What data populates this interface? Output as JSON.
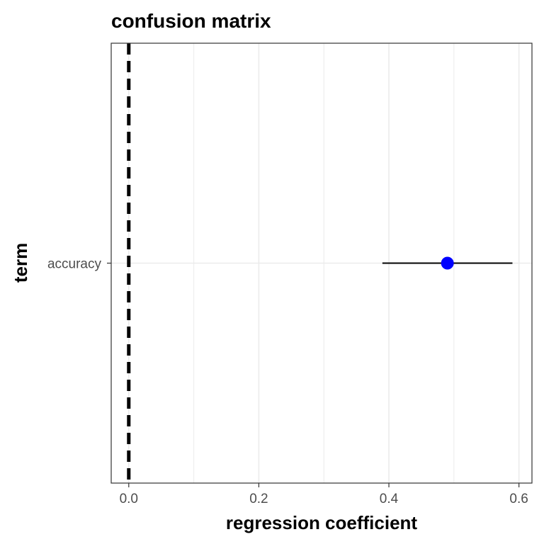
{
  "chart_data": {
    "type": "scatter",
    "title": "confusion matrix",
    "xlabel": "regression coefficient",
    "ylabel": "term",
    "categories": [
      "accuracy"
    ],
    "points": [
      {
        "term": "accuracy",
        "estimate": 0.49,
        "conf_low": 0.39,
        "conf_high": 0.59
      }
    ],
    "xlim": [
      -0.027,
      0.62
    ],
    "xticks": [
      0.0,
      0.2,
      0.4,
      0.6
    ],
    "xtick_labels": [
      "0.0",
      "0.2",
      "0.4",
      "0.6"
    ],
    "reference_line": {
      "x": 0,
      "style": "dashed"
    },
    "grid": true,
    "colors": {
      "point": "#0000ff",
      "errorbar": "#000000",
      "reference_line": "#000000",
      "grid": "#ebebeb",
      "panel_border": "#333333",
      "tick_text": "#4d4d4d"
    }
  }
}
